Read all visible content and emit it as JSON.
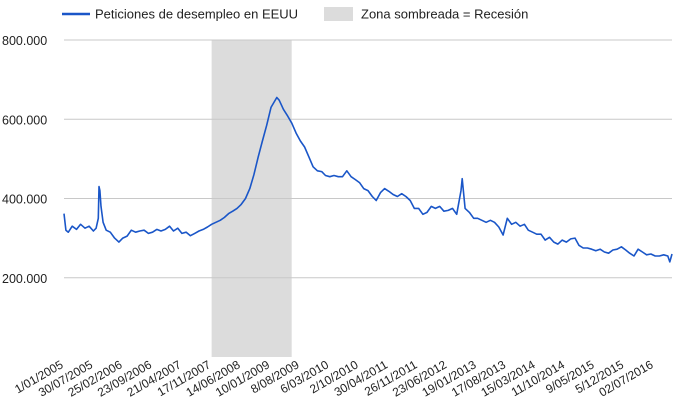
{
  "chart_data": {
    "type": "line",
    "legend": {
      "position": "top-left",
      "series_label": "Peticiones de desempleo en EEUU",
      "shade_label": "Zona sombreada = Recesión"
    },
    "colors": {
      "line": "#1a56c8",
      "shade": "#dcdcdc",
      "grid": "#c8c8c8"
    },
    "grid": true,
    "y_ticks": [
      "800.000",
      "600.000",
      "400.000",
      "200.000"
    ],
    "y_tick_values": [
      800000,
      600000,
      400000,
      200000
    ],
    "ylim": [
      0,
      800000
    ],
    "x_tick_labels": [
      "1/01/2005",
      "30/07/2005",
      "25/02/2006",
      "23/09/2006",
      "21/04/2007",
      "17/11/2007",
      "14/06/2008",
      "10/01/2009",
      "8/08/2009",
      "6/03/2010",
      "2/10/2010",
      "30/04/2011",
      "26/11/2011",
      "23/06/2012",
      "19/01/2013",
      "17/08/2013",
      "15/03/2014",
      "11/10/2014",
      "9/05/2015",
      "5/12/2015",
      "02/07/2016"
    ],
    "x_range": [
      "2005-01-01",
      "2016-12-31"
    ],
    "recession": {
      "start": "2007-12-01",
      "end": "2009-06-30"
    },
    "series": [
      {
        "name": "Peticiones de desempleo en EEUU",
        "points": [
          [
            "2005-01-01",
            362000
          ],
          [
            "2005-01-15",
            320000
          ],
          [
            "2005-02-01",
            315000
          ],
          [
            "2005-03-01",
            330000
          ],
          [
            "2005-04-01",
            322000
          ],
          [
            "2005-05-01",
            335000
          ],
          [
            "2005-06-01",
            325000
          ],
          [
            "2005-07-01",
            330000
          ],
          [
            "2005-08-01",
            318000
          ],
          [
            "2005-08-20",
            325000
          ],
          [
            "2005-09-05",
            350000
          ],
          [
            "2005-09-10",
            430000
          ],
          [
            "2005-09-17",
            420000
          ],
          [
            "2005-09-25",
            380000
          ],
          [
            "2005-10-10",
            340000
          ],
          [
            "2005-11-01",
            320000
          ],
          [
            "2005-12-01",
            315000
          ],
          [
            "2006-01-01",
            300000
          ],
          [
            "2006-02-01",
            290000
          ],
          [
            "2006-03-01",
            300000
          ],
          [
            "2006-04-01",
            305000
          ],
          [
            "2006-05-01",
            320000
          ],
          [
            "2006-06-01",
            315000
          ],
          [
            "2006-07-01",
            318000
          ],
          [
            "2006-08-01",
            320000
          ],
          [
            "2006-09-01",
            312000
          ],
          [
            "2006-10-01",
            315000
          ],
          [
            "2006-11-01",
            322000
          ],
          [
            "2006-12-01",
            318000
          ],
          [
            "2007-01-01",
            322000
          ],
          [
            "2007-02-01",
            330000
          ],
          [
            "2007-03-01",
            318000
          ],
          [
            "2007-04-01",
            325000
          ],
          [
            "2007-05-01",
            312000
          ],
          [
            "2007-06-01",
            315000
          ],
          [
            "2007-07-01",
            306000
          ],
          [
            "2007-08-01",
            312000
          ],
          [
            "2007-09-01",
            318000
          ],
          [
            "2007-10-01",
            322000
          ],
          [
            "2007-11-01",
            328000
          ],
          [
            "2007-12-01",
            335000
          ],
          [
            "2008-01-01",
            340000
          ],
          [
            "2008-02-01",
            345000
          ],
          [
            "2008-03-01",
            352000
          ],
          [
            "2008-04-01",
            362000
          ],
          [
            "2008-05-01",
            368000
          ],
          [
            "2008-06-01",
            375000
          ],
          [
            "2008-07-01",
            385000
          ],
          [
            "2008-08-01",
            400000
          ],
          [
            "2008-09-01",
            425000
          ],
          [
            "2008-10-01",
            460000
          ],
          [
            "2008-11-01",
            505000
          ],
          [
            "2008-12-01",
            545000
          ],
          [
            "2009-01-01",
            585000
          ],
          [
            "2009-02-01",
            630000
          ],
          [
            "2009-03-15",
            655000
          ],
          [
            "2009-04-01",
            648000
          ],
          [
            "2009-05-01",
            625000
          ],
          [
            "2009-06-01",
            608000
          ],
          [
            "2009-07-01",
            590000
          ],
          [
            "2009-08-01",
            565000
          ],
          [
            "2009-09-01",
            545000
          ],
          [
            "2009-10-01",
            530000
          ],
          [
            "2009-11-01",
            505000
          ],
          [
            "2009-12-01",
            480000
          ],
          [
            "2010-01-01",
            470000
          ],
          [
            "2010-02-01",
            468000
          ],
          [
            "2010-03-01",
            458000
          ],
          [
            "2010-04-01",
            455000
          ],
          [
            "2010-05-01",
            458000
          ],
          [
            "2010-06-01",
            455000
          ],
          [
            "2010-07-01",
            455000
          ],
          [
            "2010-08-01",
            470000
          ],
          [
            "2010-09-01",
            455000
          ],
          [
            "2010-10-01",
            448000
          ],
          [
            "2010-11-01",
            440000
          ],
          [
            "2010-12-01",
            425000
          ],
          [
            "2011-01-01",
            420000
          ],
          [
            "2011-02-01",
            405000
          ],
          [
            "2011-03-01",
            395000
          ],
          [
            "2011-04-01",
            415000
          ],
          [
            "2011-05-01",
            425000
          ],
          [
            "2011-06-01",
            418000
          ],
          [
            "2011-07-01",
            410000
          ],
          [
            "2011-08-01",
            405000
          ],
          [
            "2011-09-01",
            412000
          ],
          [
            "2011-10-01",
            405000
          ],
          [
            "2011-11-01",
            395000
          ],
          [
            "2011-12-01",
            375000
          ],
          [
            "2012-01-01",
            375000
          ],
          [
            "2012-02-01",
            360000
          ],
          [
            "2012-03-01",
            365000
          ],
          [
            "2012-04-01",
            380000
          ],
          [
            "2012-05-01",
            375000
          ],
          [
            "2012-06-01",
            380000
          ],
          [
            "2012-07-01",
            368000
          ],
          [
            "2012-08-01",
            370000
          ],
          [
            "2012-09-01",
            375000
          ],
          [
            "2012-10-01",
            360000
          ],
          [
            "2012-11-01",
            420000
          ],
          [
            "2012-11-10",
            450000
          ],
          [
            "2012-12-01",
            375000
          ],
          [
            "2013-01-01",
            365000
          ],
          [
            "2013-02-01",
            350000
          ],
          [
            "2013-03-01",
            350000
          ],
          [
            "2013-04-01",
            345000
          ],
          [
            "2013-05-01",
            340000
          ],
          [
            "2013-06-01",
            345000
          ],
          [
            "2013-07-01",
            340000
          ],
          [
            "2013-08-01",
            328000
          ],
          [
            "2013-09-01",
            308000
          ],
          [
            "2013-10-01",
            350000
          ],
          [
            "2013-11-01",
            335000
          ],
          [
            "2013-12-01",
            340000
          ],
          [
            "2014-01-01",
            330000
          ],
          [
            "2014-02-01",
            335000
          ],
          [
            "2014-03-01",
            320000
          ],
          [
            "2014-04-01",
            315000
          ],
          [
            "2014-05-01",
            310000
          ],
          [
            "2014-06-01",
            310000
          ],
          [
            "2014-07-01",
            295000
          ],
          [
            "2014-08-01",
            302000
          ],
          [
            "2014-09-01",
            290000
          ],
          [
            "2014-10-01",
            285000
          ],
          [
            "2014-11-01",
            295000
          ],
          [
            "2014-12-01",
            290000
          ],
          [
            "2015-01-01",
            298000
          ],
          [
            "2015-02-01",
            300000
          ],
          [
            "2015-03-01",
            282000
          ],
          [
            "2015-04-01",
            275000
          ],
          [
            "2015-05-01",
            275000
          ],
          [
            "2015-06-01",
            272000
          ],
          [
            "2015-07-01",
            268000
          ],
          [
            "2015-08-01",
            272000
          ],
          [
            "2015-09-01",
            265000
          ],
          [
            "2015-10-01",
            262000
          ],
          [
            "2015-11-01",
            270000
          ],
          [
            "2015-12-01",
            272000
          ],
          [
            "2016-01-01",
            278000
          ],
          [
            "2016-02-01",
            270000
          ],
          [
            "2016-03-01",
            262000
          ],
          [
            "2016-04-01",
            255000
          ],
          [
            "2016-05-01",
            272000
          ],
          [
            "2016-06-01",
            265000
          ],
          [
            "2016-07-01",
            258000
          ],
          [
            "2016-08-01",
            260000
          ],
          [
            "2016-09-01",
            255000
          ],
          [
            "2016-10-01",
            255000
          ],
          [
            "2016-11-01",
            258000
          ],
          [
            "2016-12-01",
            255000
          ],
          [
            "2016-12-15",
            240000
          ],
          [
            "2016-12-31",
            260000
          ]
        ]
      }
    ]
  }
}
